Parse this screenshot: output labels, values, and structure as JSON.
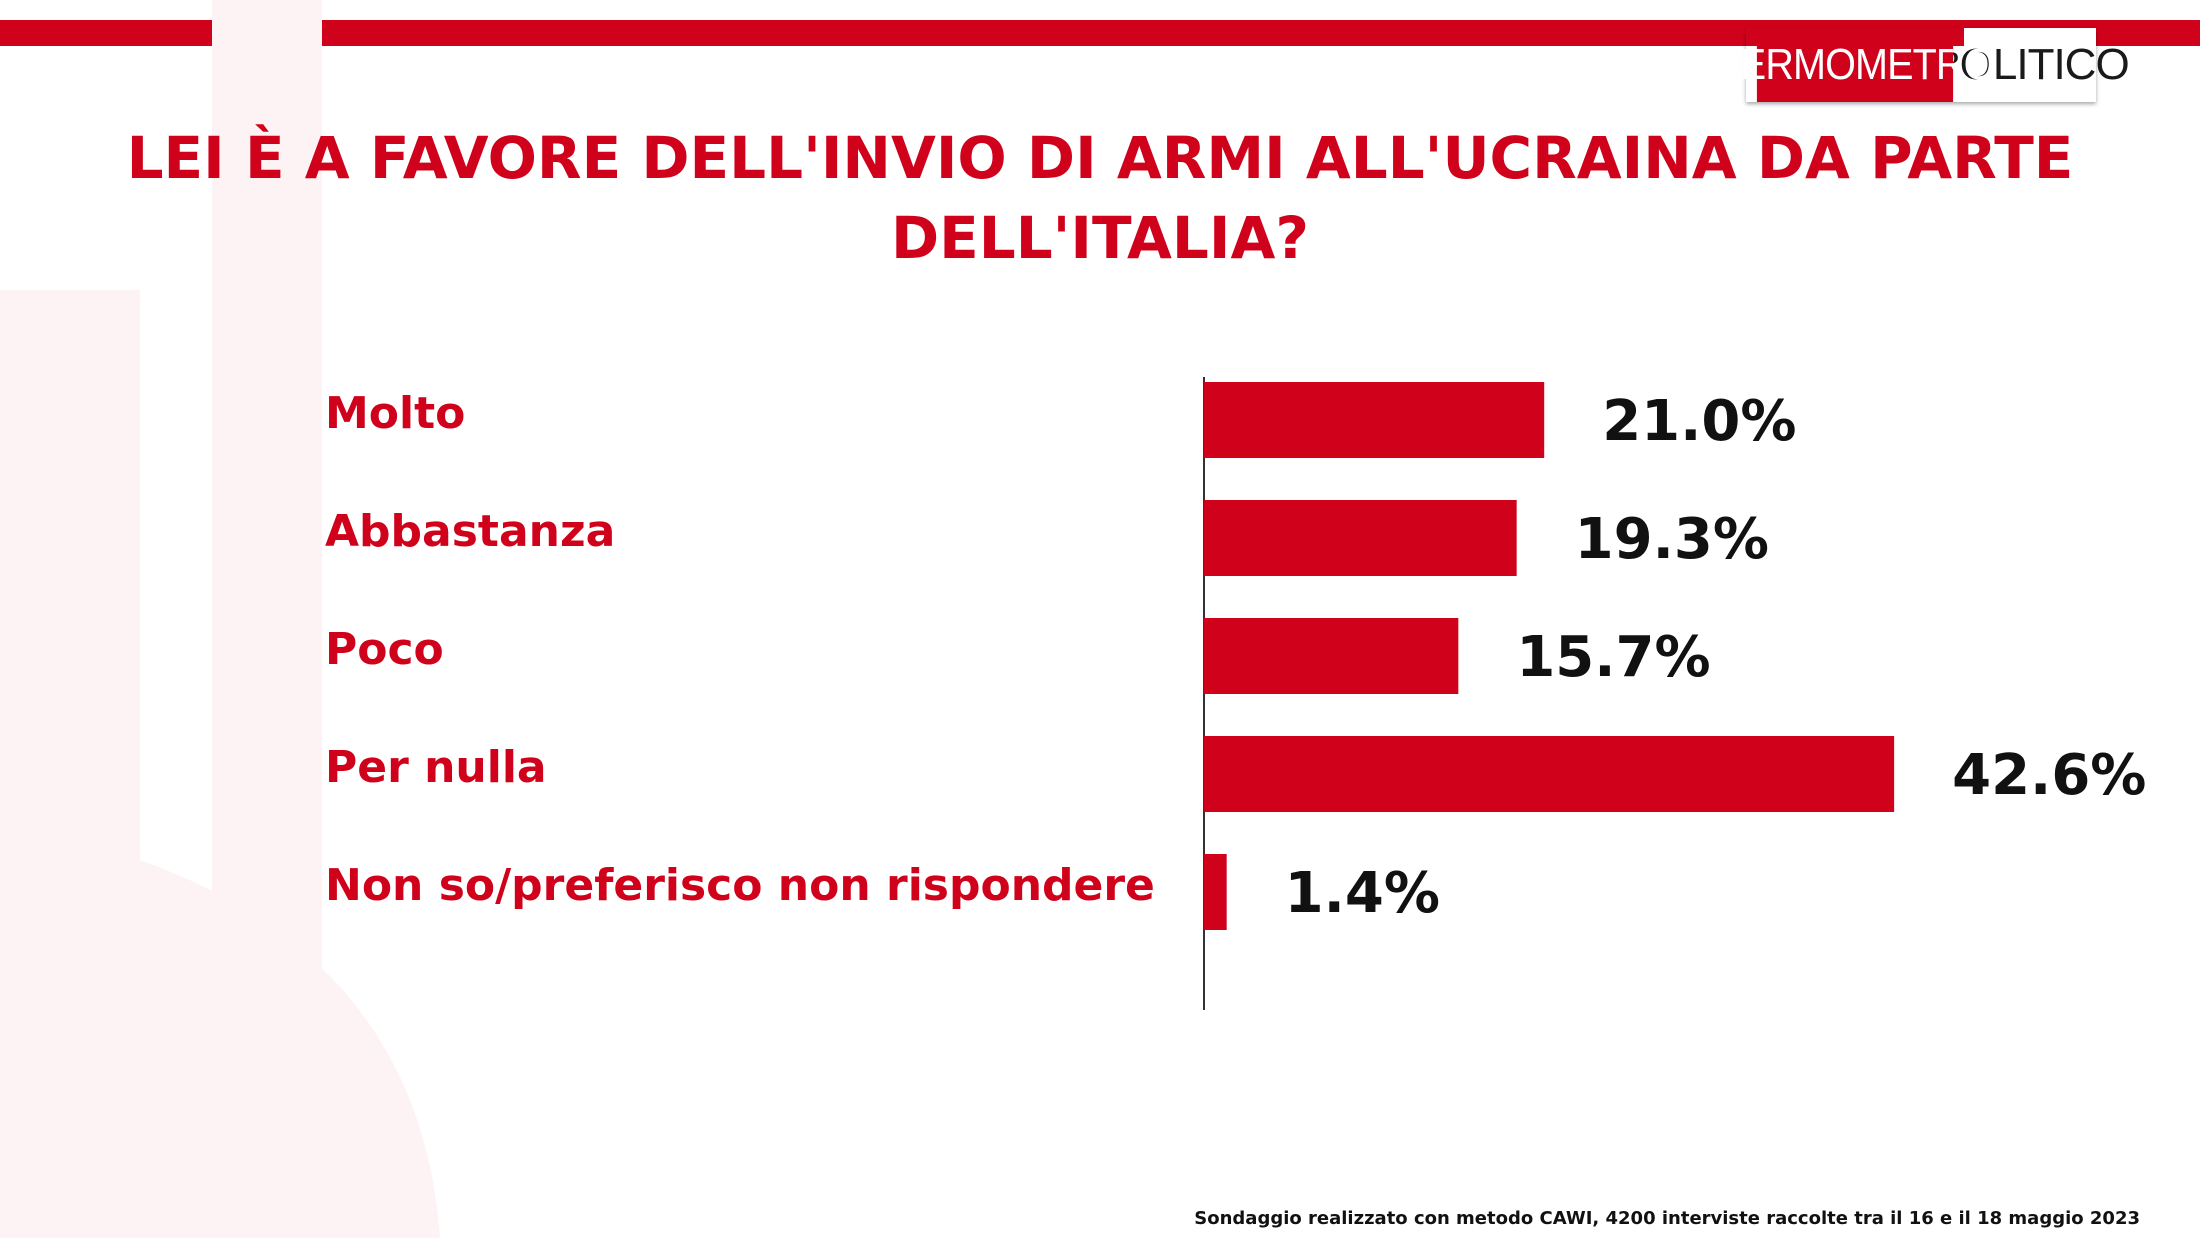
{
  "brand": {
    "logo_left": "TERMOMETRO",
    "logo_right": "POLITICO",
    "accent_color": "#d0021b"
  },
  "chart_data": {
    "type": "bar",
    "orientation": "horizontal",
    "title": "LEI È A FAVORE DELL'INVIO DI ARMI ALL'UCRAINA DA PARTE DELL'ITALIA?",
    "categories": [
      "Molto",
      "Abbastanza",
      "Poco",
      "Per nulla",
      "Non so/preferisco non rispondere"
    ],
    "values": [
      21.0,
      19.3,
      15.7,
      42.6,
      1.4
    ],
    "value_labels": [
      "21.0%",
      "19.3%",
      "15.7%",
      "42.6%",
      "1.4%"
    ],
    "bar_color": "#d0021b",
    "grid": false,
    "legend": "none"
  },
  "footnote": "Sondaggio realizzato con metodo CAWI, 4200 interviste raccolte tra il 16 e il 18 maggio 2023"
}
